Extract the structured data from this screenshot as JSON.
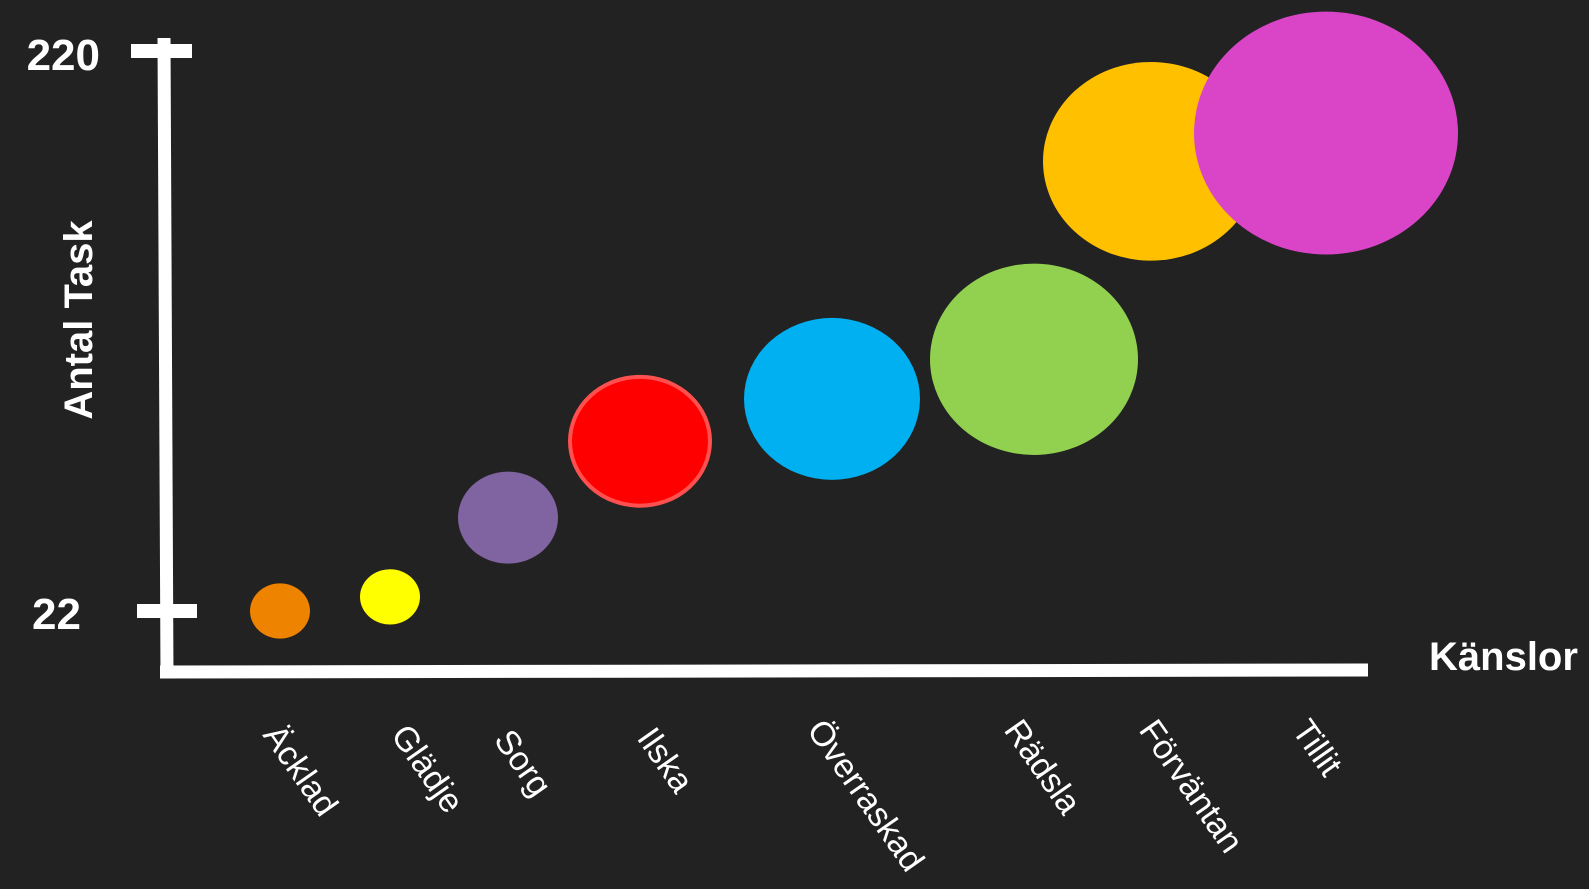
{
  "chart_data": {
    "type": "bubble",
    "title": "",
    "xlabel": "Känslor",
    "ylabel": "Antal Task",
    "yticks": [
      22,
      220
    ],
    "ylim": [
      22,
      220
    ],
    "grid": false,
    "legend": "none",
    "background": "#222222",
    "axis_color": "#ffffff",
    "points": [
      {
        "category": "Äcklad",
        "y": 22,
        "size": 30,
        "color": "#EE8300"
      },
      {
        "category": "Glädje",
        "y": 27,
        "size": 30,
        "color": "#FFFF00"
      },
      {
        "category": "Sorg",
        "y": 55,
        "size": 50,
        "color": "#8064A2"
      },
      {
        "category": "Ilska",
        "y": 82,
        "size": 70,
        "color": "#FF0000",
        "stroke": "#FF5050"
      },
      {
        "category": "Överraskad",
        "y": 97,
        "size": 88,
        "color": "#00B0F0"
      },
      {
        "category": "Rädsla",
        "y": 111,
        "size": 104,
        "color": "#92D050"
      },
      {
        "category": "Förväntan",
        "y": 181,
        "size": 108,
        "color": "#FFC000"
      },
      {
        "category": "Tillit",
        "y": 191,
        "size": 132,
        "color": "#DA45C8"
      }
    ]
  }
}
